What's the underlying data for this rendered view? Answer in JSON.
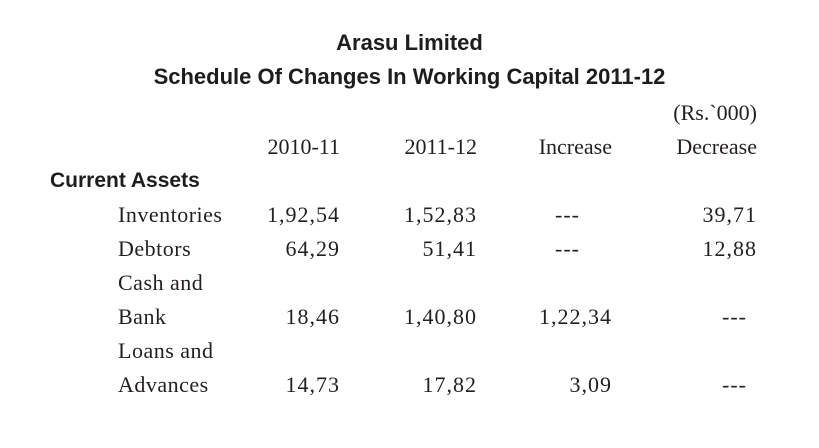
{
  "doc": {
    "title": "Arasu Limited",
    "subtitle": "Schedule Of Changes In Working Capital 2011-12",
    "unit_note": "(Rs.`000)"
  },
  "table": {
    "columns": [
      "2010-11",
      "2011-12",
      "Increase",
      "Decrease"
    ],
    "section": "Current Assets",
    "rows": [
      {
        "label": "Inventories",
        "y2010_11": "1,92,54",
        "y2011_12": "1,52,83",
        "increase": "---",
        "decrease": "39,71"
      },
      {
        "label": "Debtors",
        "y2010_11": "64,29",
        "y2011_12": "51,41",
        "increase": "---",
        "decrease": "12,88"
      },
      {
        "label": "Cash and",
        "y2010_11": "",
        "y2011_12": "",
        "increase": "",
        "decrease": ""
      },
      {
        "label": "Bank",
        "y2010_11": "18,46",
        "y2011_12": "1,40,80",
        "increase": "1,22,34",
        "decrease": "---"
      },
      {
        "label": "Loans and",
        "y2010_11": "",
        "y2011_12": "",
        "increase": "",
        "decrease": ""
      },
      {
        "label": "Advances",
        "y2010_11": "14,73",
        "y2011_12": "17,82",
        "increase": "3,09",
        "decrease": "---"
      }
    ]
  }
}
